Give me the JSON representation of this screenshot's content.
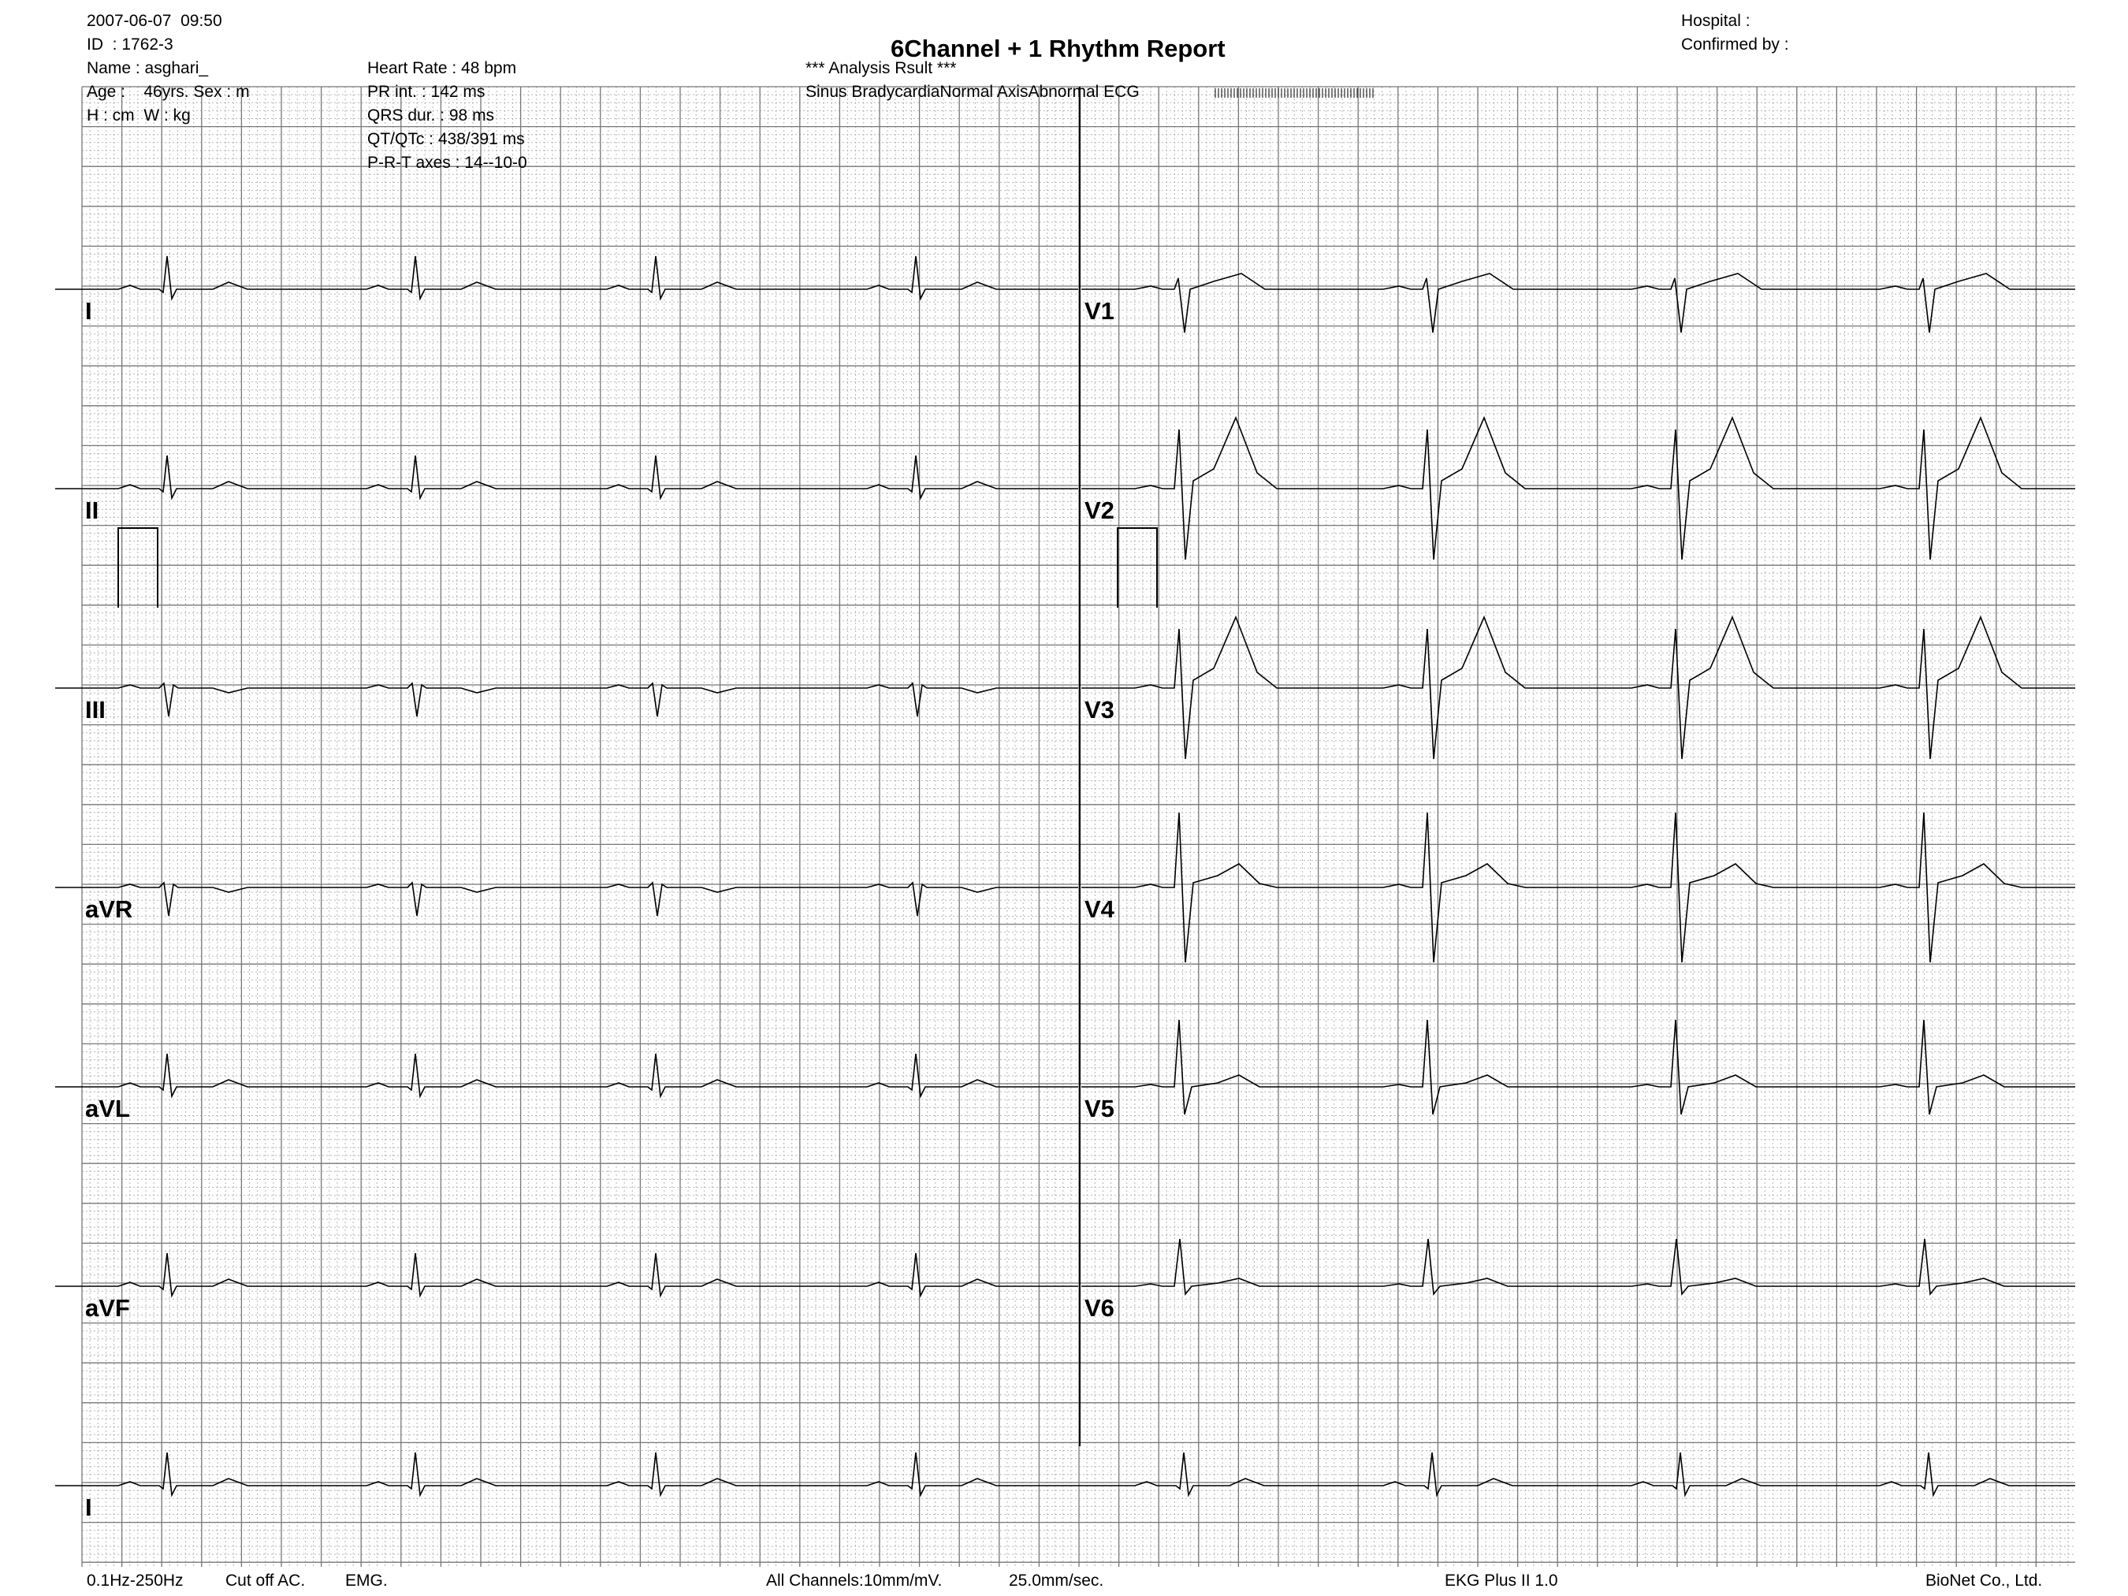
{
  "header": {
    "datetime": "2007-06-07  09:50",
    "id": "ID  : 1762-3",
    "name": "Name : asghari_",
    "age_sex": "Age :    46yrs. Sex : m",
    "height_weight": "H : cm  W : kg",
    "heart_rate": "Heart Rate : 48 bpm",
    "pr_int": "PR int. : 142 ms",
    "qrs_dur": "QRS dur. : 98 ms",
    "qt_qtc": "QT/QTc : 438/391 ms",
    "prt_axes": "P-R-T axes : 14--10-0",
    "title": "6Channel + 1 Rhythm Report",
    "analysis_heading": "*** Analysis Rsult ***",
    "analysis_result": "Sinus BradycardiaNormal AxisAbnormal ECG",
    "hospital": "Hospital :",
    "confirmed_by": "Confirmed by :"
  },
  "leads": {
    "left": [
      "I",
      "II",
      "III",
      "aVR",
      "aVL",
      "aVF"
    ],
    "right": [
      "V1",
      "V2",
      "V3",
      "V4",
      "V5",
      "V6"
    ],
    "rhythm": "I"
  },
  "footer": {
    "filter": "0.1Hz-250Hz",
    "cutoff_ac": "Cut off AC.",
    "emg": "EMG.",
    "channels": "All Channels:10mm/mV.",
    "speed": "25.0mm/sec.",
    "device": "EKG Plus II 1.0",
    "company": "BioNet Co., Ltd."
  },
  "colors": {
    "grid_major": "#777777",
    "grid_minor": "#b5b5b5",
    "trace": "#000000"
  }
}
